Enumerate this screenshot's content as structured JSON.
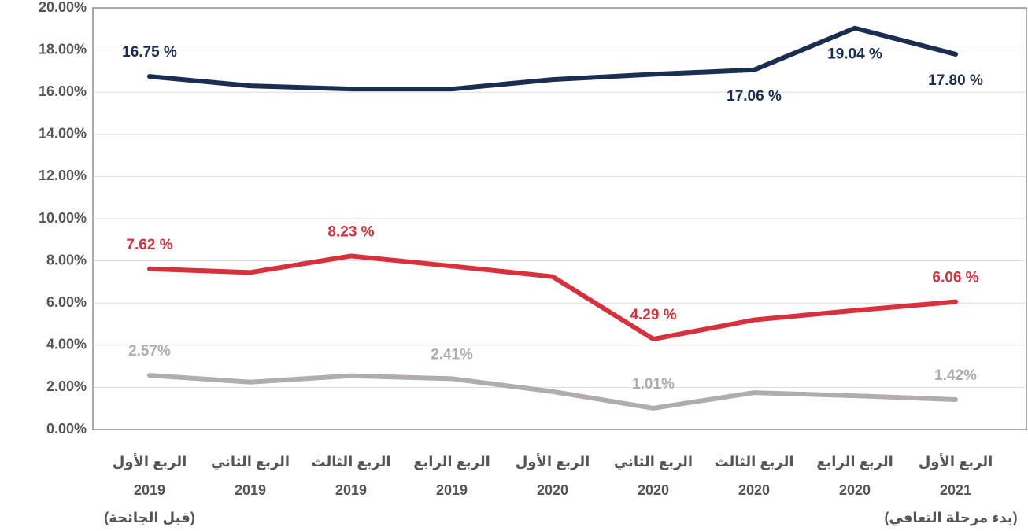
{
  "chart_data": {
    "type": "line",
    "categories": [
      [
        "الربع الأول",
        "2019"
      ],
      [
        "الربع الثاني",
        "2019"
      ],
      [
        "الربع الثالث",
        "2019"
      ],
      [
        "الربع الرابع",
        "2019"
      ],
      [
        "الربع الأول",
        "2020"
      ],
      [
        "الربع الثاني",
        "2020"
      ],
      [
        "الربع الثالث",
        "2020"
      ],
      [
        "الربع الرابع",
        "2020"
      ],
      [
        "الربع الأول",
        "2021"
      ]
    ],
    "annotations": [
      "(قبل الجائحة)",
      "(بدء مرحلة التعافي)"
    ],
    "annotation_color": "#d9303e",
    "series": [
      {
        "color": "#1a2e52",
        "values": [
          16.75,
          16.3,
          16.15,
          16.15,
          16.6,
          16.85,
          17.06,
          19.04,
          17.8
        ],
        "value_labels": [
          "16.75 %",
          null,
          null,
          null,
          null,
          null,
          "17.06 %",
          "19.04 %",
          "17.80 %"
        ]
      },
      {
        "color": "#d9303e",
        "values": [
          7.62,
          7.45,
          8.23,
          7.75,
          7.25,
          4.29,
          5.2,
          5.65,
          6.06
        ],
        "value_labels": [
          "7.62 %",
          null,
          "8.23 %",
          null,
          null,
          "4.29 %",
          null,
          null,
          "6.06 %"
        ]
      },
      {
        "color": "#b1adad",
        "values": [
          2.57,
          2.25,
          2.55,
          2.41,
          1.8,
          1.01,
          1.75,
          1.6,
          1.42
        ],
        "value_labels": [
          "2.57%",
          null,
          null,
          "2.41%",
          null,
          "1.01%",
          null,
          null,
          "1.42%"
        ]
      }
    ],
    "ylim": [
      0,
      20
    ],
    "yticks": [
      {
        "value": 0,
        "label": "0.00%"
      },
      {
        "value": 2,
        "label": "2.00%"
      },
      {
        "value": 4,
        "label": "4.00%"
      },
      {
        "value": 6,
        "label": "6.00%"
      },
      {
        "value": 8,
        "label": "8.00%"
      },
      {
        "value": 10,
        "label": "10.00%"
      },
      {
        "value": 12,
        "label": "12.00%"
      },
      {
        "value": 14,
        "label": "14.00%"
      },
      {
        "value": 16,
        "label": "16.00%"
      },
      {
        "value": 18,
        "label": "18.00%"
      },
      {
        "value": 20,
        "label": "20.00%"
      }
    ],
    "grid": true
  }
}
